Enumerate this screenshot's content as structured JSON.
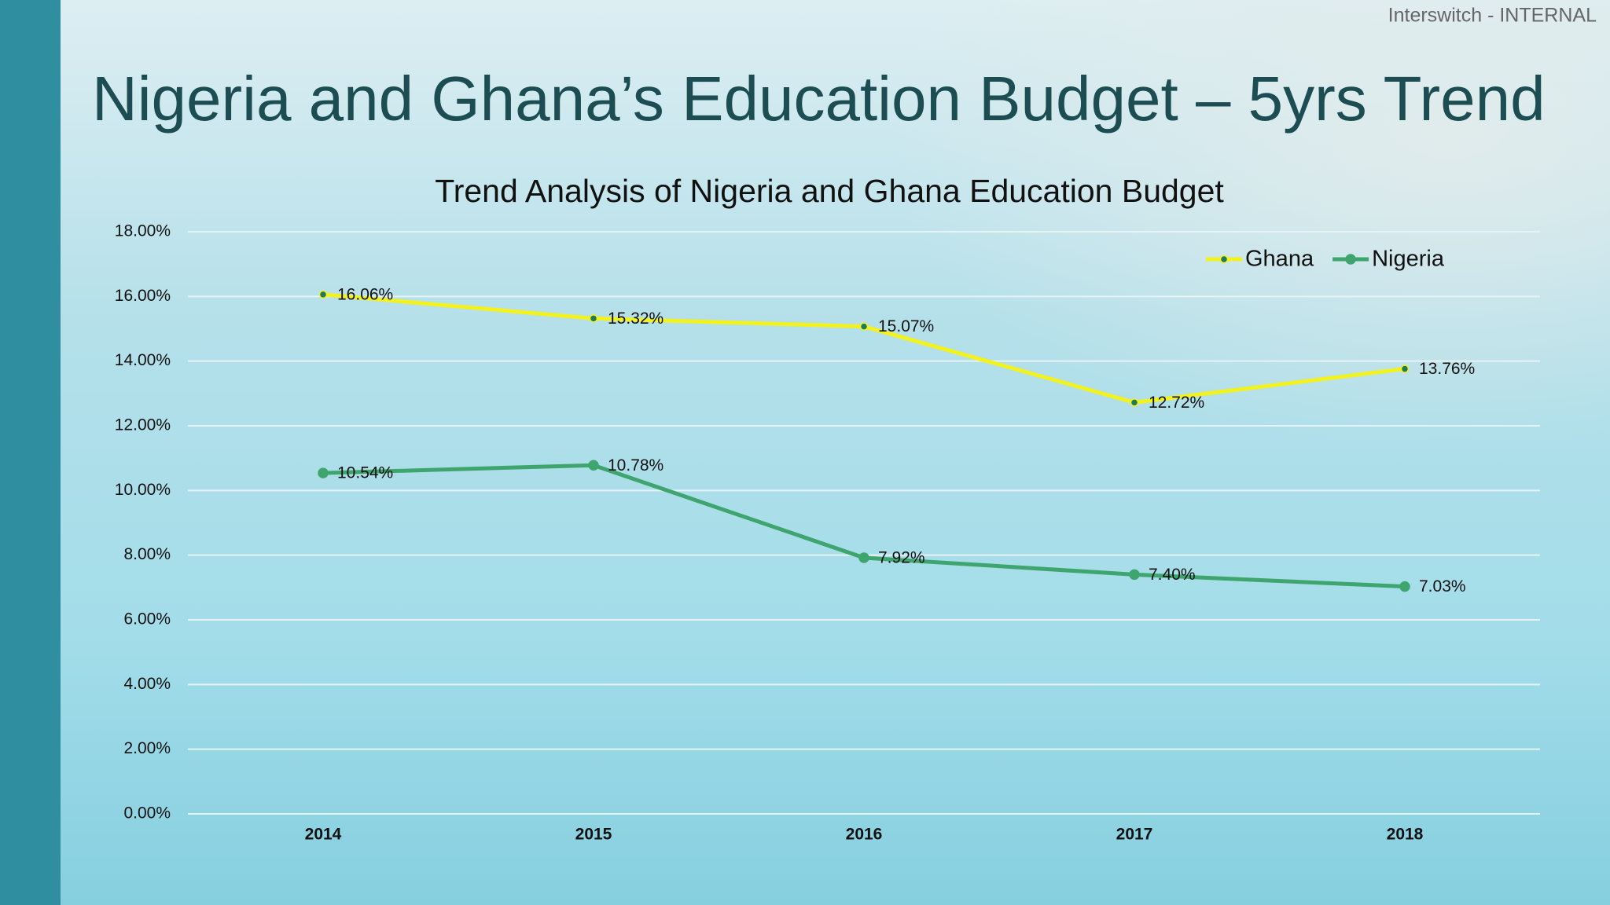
{
  "header": "Interswitch - INTERNAL",
  "heading": "Nigeria and Ghana’s Education Budget – 5yrs Trend",
  "chart_data": {
    "type": "line",
    "title": "Trend Analysis of Nigeria and Ghana Education Budget",
    "categories": [
      "2014",
      "2015",
      "2016",
      "2017",
      "2018"
    ],
    "series": [
      {
        "name": "Ghana",
        "color": "#f2f21e",
        "marker_color": "#1f7a5c",
        "values": [
          16.06,
          15.32,
          15.07,
          12.72,
          13.76
        ],
        "value_labels": [
          "16.06%",
          "15.32%",
          "15.07%",
          "12.72%",
          "13.76%"
        ]
      },
      {
        "name": "Nigeria",
        "color": "#3ea56e",
        "marker_color": "#3ea56e",
        "values": [
          10.54,
          10.78,
          7.92,
          7.4,
          7.03
        ],
        "value_labels": [
          "10.54%",
          "10.78%",
          "7.92%",
          "7.40%",
          "7.03%"
        ]
      }
    ],
    "ylim": [
      0,
      18
    ],
    "yticks": [
      {
        "value": 0,
        "label": "0.00%"
      },
      {
        "value": 2,
        "label": "2.00%"
      },
      {
        "value": 4,
        "label": "4.00%"
      },
      {
        "value": 6,
        "label": "6.00%"
      },
      {
        "value": 8,
        "label": "8.00%"
      },
      {
        "value": 10,
        "label": "10.00%"
      },
      {
        "value": 12,
        "label": "12.00%"
      },
      {
        "value": 14,
        "label": "14.00%"
      },
      {
        "value": 16,
        "label": "16.00%"
      },
      {
        "value": 18,
        "label": "18.00%"
      }
    ],
    "grid": true,
    "legend": "upper right"
  }
}
